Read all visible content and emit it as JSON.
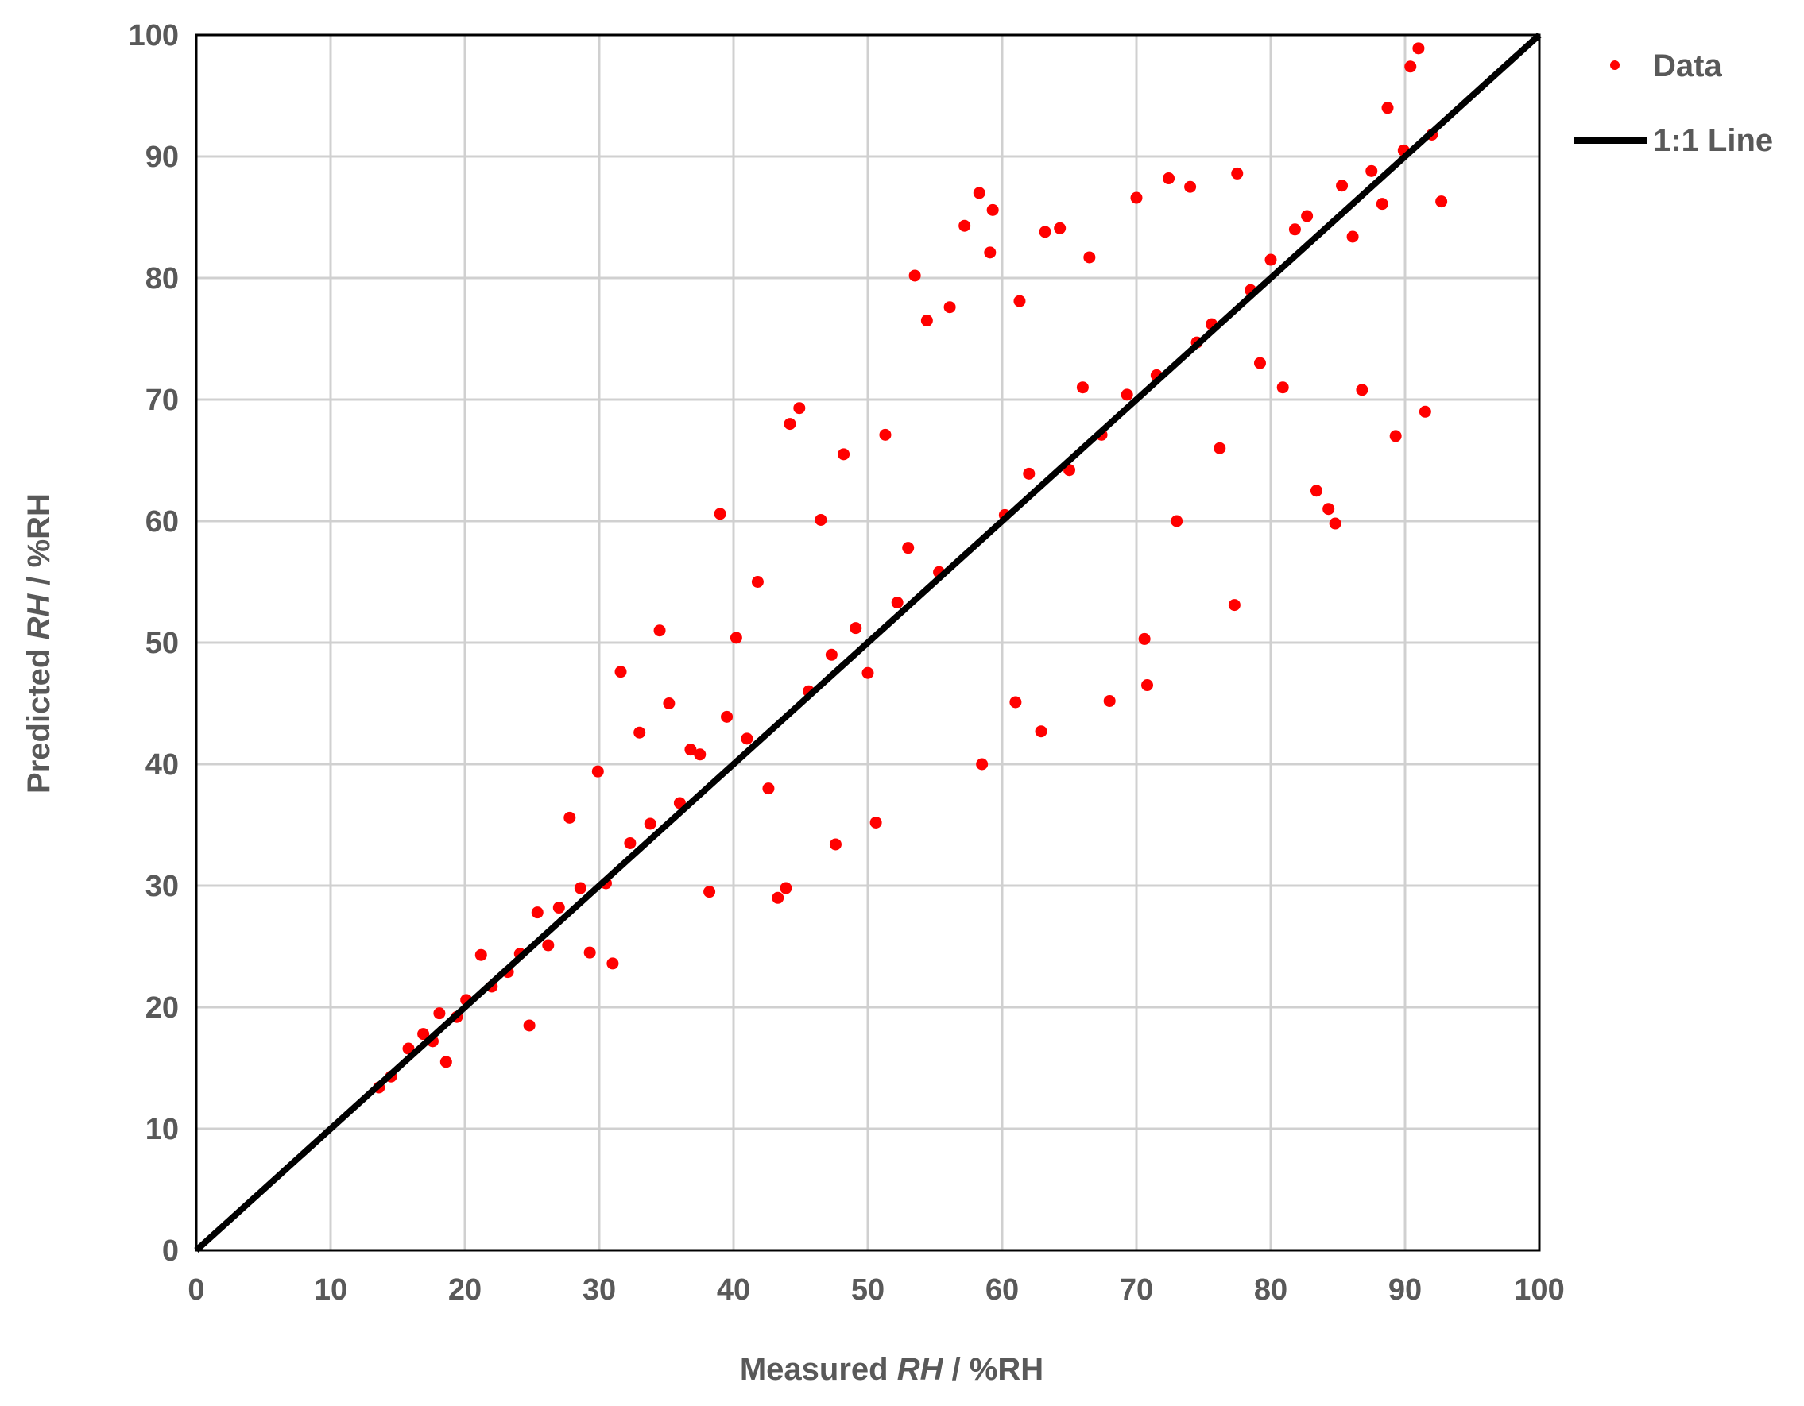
{
  "chart_data": {
    "type": "scatter",
    "xlim": [
      0,
      100
    ],
    "ylim": [
      0,
      100
    ],
    "x_ticks": [
      0,
      10,
      20,
      30,
      40,
      50,
      60,
      70,
      80,
      90,
      100
    ],
    "y_ticks": [
      0,
      10,
      20,
      30,
      40,
      50,
      60,
      70,
      80,
      90,
      100
    ],
    "x_tick_labels": [
      "0",
      "10",
      "20",
      "30",
      "40",
      "50",
      "60",
      "70",
      "80",
      "90",
      "100"
    ],
    "y_tick_labels": [
      "0",
      "10",
      "20",
      "30",
      "40",
      "50",
      "60",
      "70",
      "80",
      "90",
      "100"
    ],
    "xlabel": {
      "prefix": "Measured ",
      "variable": "RH",
      "suffix": "  / %RH"
    },
    "ylabel": {
      "prefix": "Predicted ",
      "variable": "RH",
      "suffix": " / %RH"
    },
    "grid": true,
    "legend_position": "top-right outside",
    "colors": {
      "data": "#ff0000",
      "line": "#000000",
      "grid": "#d0d0d0",
      "text": "#595959"
    },
    "series": [
      {
        "name": "Data",
        "kind": "scatter",
        "points": [
          [
            13.6,
            13.4
          ],
          [
            14.5,
            14.3
          ],
          [
            15.8,
            16.6
          ],
          [
            16.9,
            17.8
          ],
          [
            17.6,
            17.2
          ],
          [
            18.1,
            19.5
          ],
          [
            18.6,
            15.5
          ],
          [
            19.4,
            19.2
          ],
          [
            20.1,
            20.6
          ],
          [
            21.2,
            24.3
          ],
          [
            22.0,
            21.7
          ],
          [
            23.2,
            22.9
          ],
          [
            24.1,
            24.4
          ],
          [
            24.8,
            18.5
          ],
          [
            25.4,
            27.8
          ],
          [
            26.2,
            25.1
          ],
          [
            27.0,
            28.2
          ],
          [
            27.8,
            35.6
          ],
          [
            28.6,
            29.8
          ],
          [
            29.3,
            24.5
          ],
          [
            29.9,
            39.4
          ],
          [
            30.5,
            30.2
          ],
          [
            31.0,
            23.6
          ],
          [
            31.6,
            47.6
          ],
          [
            32.3,
            33.5
          ],
          [
            33.0,
            42.6
          ],
          [
            33.8,
            35.1
          ],
          [
            34.5,
            51.0
          ],
          [
            35.2,
            45.0
          ],
          [
            36.0,
            36.8
          ],
          [
            36.8,
            41.2
          ],
          [
            37.5,
            40.8
          ],
          [
            38.2,
            29.5
          ],
          [
            39.0,
            60.6
          ],
          [
            39.5,
            43.9
          ],
          [
            40.2,
            50.4
          ],
          [
            41.0,
            42.1
          ],
          [
            41.8,
            55.0
          ],
          [
            42.6,
            38.0
          ],
          [
            43.3,
            29.0
          ],
          [
            43.9,
            29.8
          ],
          [
            44.2,
            68.0
          ],
          [
            44.9,
            69.3
          ],
          [
            45.6,
            46.0
          ],
          [
            46.5,
            60.1
          ],
          [
            47.3,
            49.0
          ],
          [
            47.6,
            33.4
          ],
          [
            48.2,
            65.5
          ],
          [
            49.1,
            51.2
          ],
          [
            50.0,
            47.5
          ],
          [
            50.6,
            35.2
          ],
          [
            51.3,
            67.1
          ],
          [
            52.2,
            53.3
          ],
          [
            53.0,
            57.8
          ],
          [
            53.5,
            80.2
          ],
          [
            54.4,
            76.5
          ],
          [
            55.3,
            55.8
          ],
          [
            56.1,
            77.6
          ],
          [
            57.2,
            84.3
          ],
          [
            58.3,
            87.0
          ],
          [
            58.5,
            40.0
          ],
          [
            59.1,
            82.1
          ],
          [
            59.3,
            85.6
          ],
          [
            60.2,
            60.5
          ],
          [
            61.0,
            45.1
          ],
          [
            61.3,
            78.1
          ],
          [
            62.0,
            63.9
          ],
          [
            62.9,
            42.7
          ],
          [
            63.2,
            83.8
          ],
          [
            64.3,
            84.1
          ],
          [
            65.0,
            64.2
          ],
          [
            66.0,
            71.0
          ],
          [
            66.5,
            81.7
          ],
          [
            67.4,
            67.1
          ],
          [
            68.0,
            45.2
          ],
          [
            69.3,
            70.4
          ],
          [
            70.0,
            86.6
          ],
          [
            70.6,
            50.3
          ],
          [
            70.8,
            46.5
          ],
          [
            71.5,
            72.0
          ],
          [
            72.4,
            88.2
          ],
          [
            73.0,
            60.0
          ],
          [
            74.0,
            87.5
          ],
          [
            74.5,
            74.7
          ],
          [
            75.6,
            76.2
          ],
          [
            76.2,
            66.0
          ],
          [
            77.3,
            53.1
          ],
          [
            77.5,
            88.6
          ],
          [
            78.5,
            79.0
          ],
          [
            79.2,
            73.0
          ],
          [
            80.0,
            81.5
          ],
          [
            80.9,
            71.0
          ],
          [
            81.8,
            84.0
          ],
          [
            82.7,
            85.1
          ],
          [
            83.4,
            62.5
          ],
          [
            84.3,
            61.0
          ],
          [
            84.8,
            59.8
          ],
          [
            85.3,
            87.6
          ],
          [
            86.1,
            83.4
          ],
          [
            86.8,
            70.8
          ],
          [
            87.5,
            88.8
          ],
          [
            88.3,
            86.1
          ],
          [
            88.7,
            94.0
          ],
          [
            89.3,
            67.0
          ],
          [
            89.9,
            90.5
          ],
          [
            90.4,
            97.4
          ],
          [
            91.0,
            98.9
          ],
          [
            91.5,
            69.0
          ],
          [
            92.0,
            91.8
          ],
          [
            92.7,
            86.3
          ]
        ]
      },
      {
        "name": "1:1 Line",
        "kind": "line",
        "x": [
          0,
          100
        ],
        "y": [
          0,
          100
        ]
      }
    ]
  }
}
